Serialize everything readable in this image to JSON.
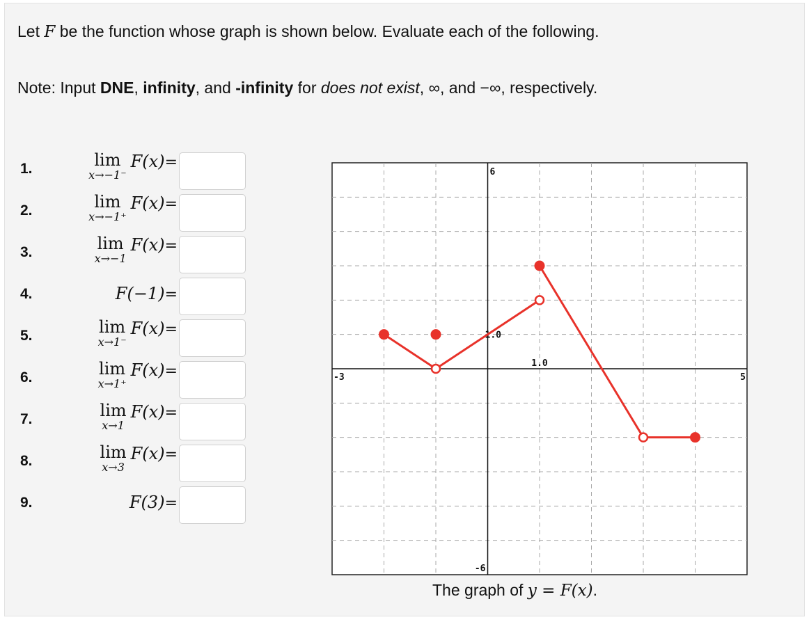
{
  "intro": {
    "line1_pre": "Let ",
    "line1_var": "F",
    "line1_post": " be the function whose graph is shown below. Evaluate each of the following.",
    "note_label": "Note: Input ",
    "note_dne": "DNE",
    "note_sep1": ", ",
    "note_inf": "infinity",
    "note_sep2": ", and ",
    "note_neginf": "-infinity",
    "note_for": " for ",
    "note_dne_meaning": "does not exist",
    "note_rest": ", ∞, and −∞, respectively."
  },
  "questions": [
    {
      "num": "1.",
      "lim": "lim",
      "sub": "x→−1⁻",
      "fx": "F(x)",
      "eq": "=",
      "value": ""
    },
    {
      "num": "2.",
      "lim": "lim",
      "sub": "x→−1⁺",
      "fx": "F(x)",
      "eq": "=",
      "value": ""
    },
    {
      "num": "3.",
      "lim": "lim",
      "sub": "x→−1",
      "fx": "F(x)",
      "eq": "=",
      "value": ""
    },
    {
      "num": "4.",
      "lim": "",
      "sub": "",
      "fx": "F(−1)",
      "eq": "=",
      "value": ""
    },
    {
      "num": "5.",
      "lim": "lim",
      "sub": "x→1⁻",
      "fx": "F(x)",
      "eq": "=",
      "value": ""
    },
    {
      "num": "6.",
      "lim": "lim",
      "sub": "x→1⁺",
      "fx": "F(x)",
      "eq": "=",
      "value": ""
    },
    {
      "num": "7.",
      "lim": "lim",
      "sub": "x→1",
      "fx": "F(x)",
      "eq": "=",
      "value": ""
    },
    {
      "num": "8.",
      "lim": "lim",
      "sub": "x→3",
      "fx": "F(x)",
      "eq": "=",
      "value": ""
    },
    {
      "num": "9.",
      "lim": "",
      "sub": "",
      "fx": "F(3)",
      "eq": "=",
      "value": ""
    }
  ],
  "graph": {
    "xlim": [
      -3,
      5
    ],
    "ylim": [
      -6,
      6
    ],
    "x_min_label": "-3",
    "x_max_label": "5",
    "y_min_label": "-6",
    "y_max_label": "6",
    "x_scale_label": "1.0",
    "y_scale_label": "1.0",
    "line_color": "#e8322a",
    "grid_color": "#a8a8a8",
    "segments": [
      [
        [
          -2,
          1
        ],
        [
          -1,
          0
        ]
      ],
      [
        [
          -1,
          0
        ],
        [
          1,
          2
        ]
      ],
      [
        [
          1,
          3
        ],
        [
          3,
          -2
        ]
      ],
      [
        [
          3,
          -2
        ],
        [
          4,
          -2
        ]
      ]
    ],
    "closed_points": [
      [
        -2,
        1
      ],
      [
        -1,
        1
      ],
      [
        1,
        3
      ],
      [
        4,
        -2
      ]
    ],
    "open_points": [
      [
        -1,
        0
      ],
      [
        1,
        2
      ],
      [
        3,
        -2
      ]
    ],
    "caption_pre": "The graph of ",
    "caption_math": "y = F(x)",
    "caption_post": "."
  }
}
